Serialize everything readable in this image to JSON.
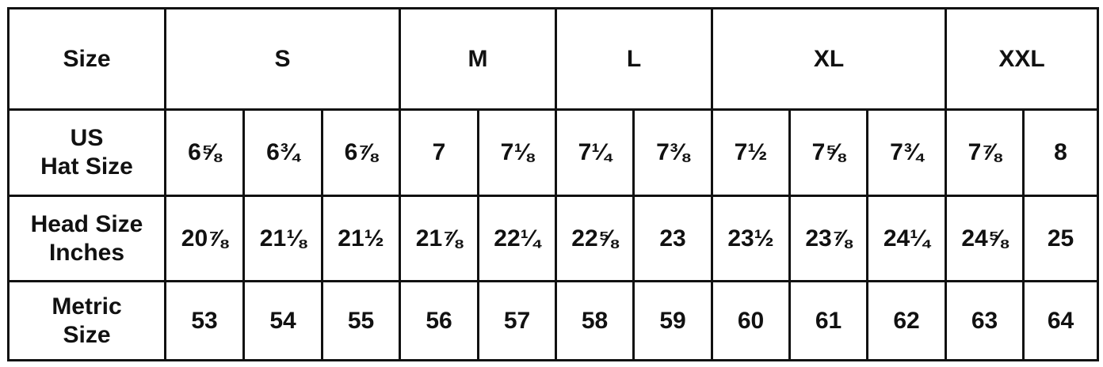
{
  "header": {
    "label": "Size",
    "groups": [
      {
        "label": "S",
        "span": 3
      },
      {
        "label": "M",
        "span": 2
      },
      {
        "label": "L",
        "span": 2
      },
      {
        "label": "XL",
        "span": 3
      },
      {
        "label": "XXL",
        "span": 2
      }
    ]
  },
  "rows": [
    {
      "label_lines": [
        "US",
        "Hat Size"
      ],
      "values": [
        "6⅝",
        "6¾",
        "6⅞",
        "7",
        "7⅛",
        "7¼",
        "7⅜",
        "7½",
        "7⅝",
        "7¾",
        "7⅞",
        "8"
      ]
    },
    {
      "label_lines": [
        "Head Size",
        "Inches"
      ],
      "values": [
        "20⅞",
        "21⅛",
        "21½",
        "21⅞",
        "22¼",
        "22⅝",
        "23",
        "23½",
        "23⅞",
        "24¼",
        "24⅝",
        "25"
      ]
    },
    {
      "label_lines": [
        "Metric",
        "Size"
      ],
      "values": [
        "53",
        "54",
        "55",
        "56",
        "57",
        "58",
        "59",
        "60",
        "61",
        "62",
        "63",
        "64"
      ]
    }
  ]
}
